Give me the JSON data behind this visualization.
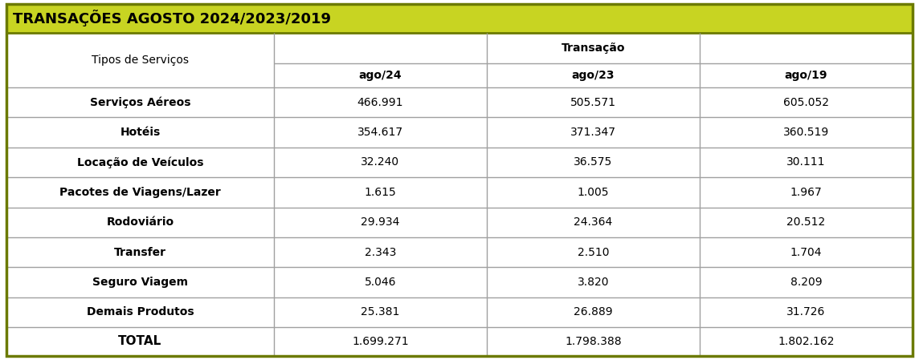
{
  "title": "TRANSAÇÕES AGOSTO 2024/2023/2019",
  "title_bg": "#c8d422",
  "title_border_color": "#6b7a00",
  "outer_border_color": "#6b7a00",
  "inner_line_color": "#a0a0a0",
  "header_transacao": "Transação",
  "col_header_tipos": "Tipos de Serviços",
  "col_header_ago24": "ago/24",
  "col_header_ago23": "ago/23",
  "col_header_ago19": "ago/19",
  "rows": [
    [
      "Serviços Aéreos",
      "466.991",
      "505.571",
      "605.052"
    ],
    [
      "Hotéis",
      "354.617",
      "371.347",
      "360.519"
    ],
    [
      "Locação de Veículos",
      "32.240",
      "36.575",
      "30.111"
    ],
    [
      "Pacotes de Viagens/Lazer",
      "1.615",
      "1.005",
      "1.967"
    ],
    [
      "Rodoviário",
      "29.934",
      "24.364",
      "20.512"
    ],
    [
      "Transfer",
      "2.343",
      "2.510",
      "1.704"
    ],
    [
      "Seguro Viagem",
      "5.046",
      "3.820",
      "8.209"
    ],
    [
      "Demais Produtos",
      "25.381",
      "26.889",
      "31.726"
    ]
  ],
  "total_row": [
    "TOTAL",
    "1.699.271",
    "1.798.388",
    "1.802.162"
  ],
  "bg_color": "#ffffff",
  "fig_width": 11.44,
  "fig_height": 4.54,
  "dpi": 100
}
